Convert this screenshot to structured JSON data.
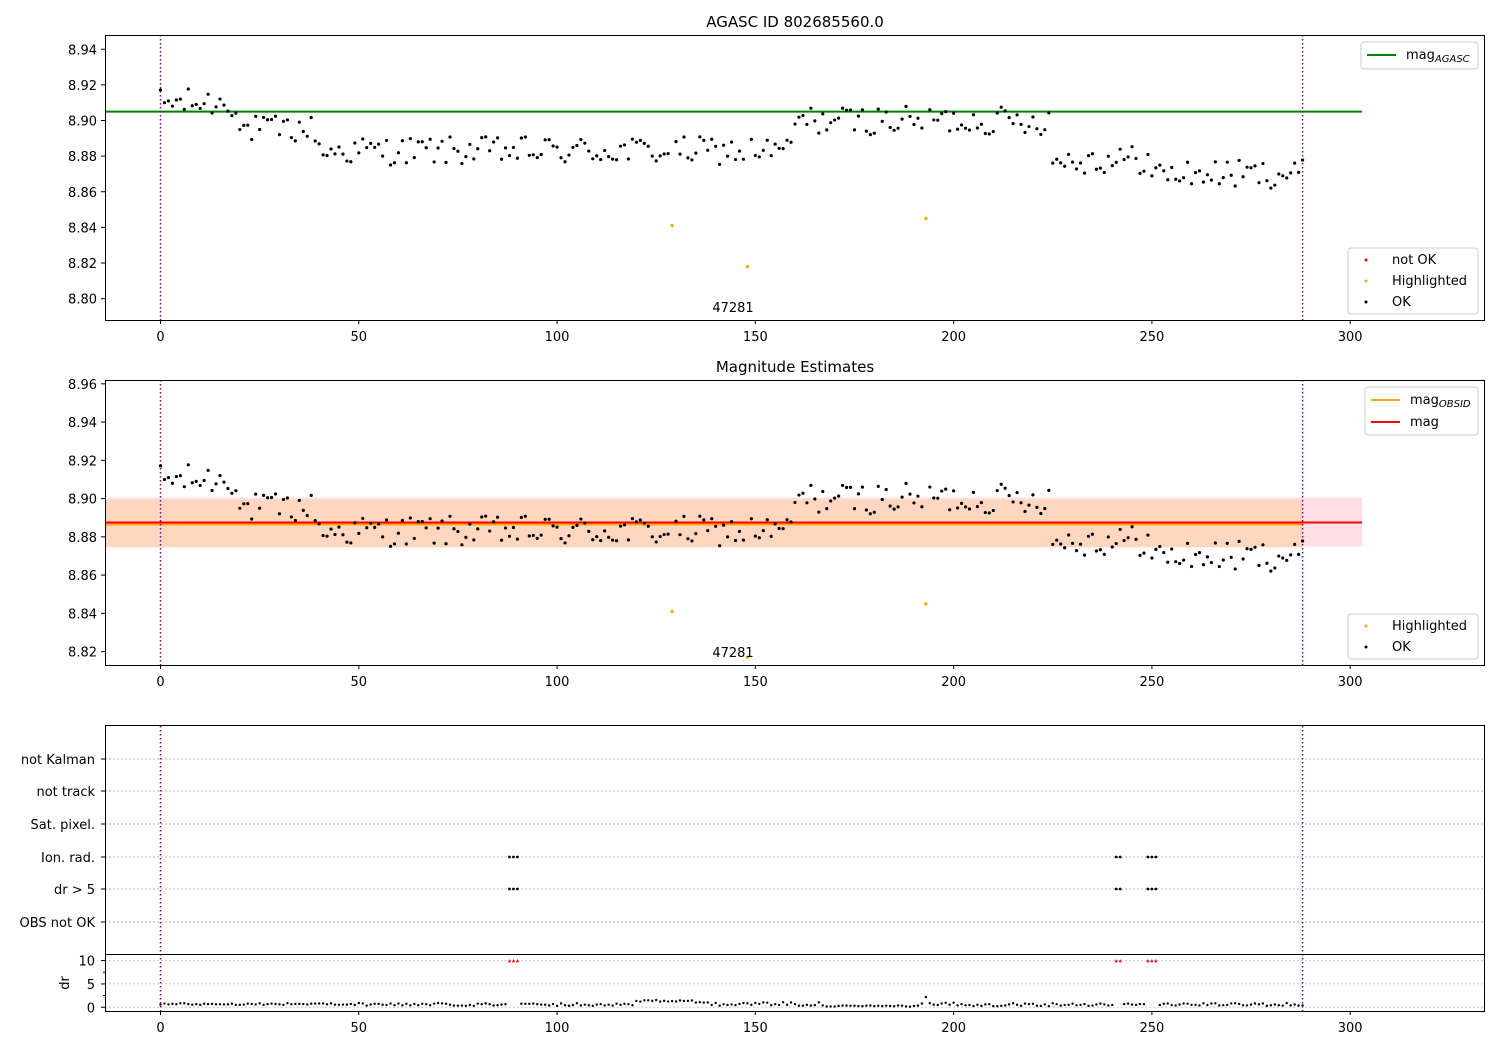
{
  "chart_data": [
    {
      "type": "scatter",
      "title": "AGASC ID 802685560.0",
      "annotation": "47281",
      "xlim": [
        -14,
        334
      ],
      "ylim": [
        8.788,
        8.948
      ],
      "xticks": [
        0,
        50,
        100,
        150,
        200,
        250,
        300
      ],
      "yticks": [
        8.8,
        8.82,
        8.84,
        8.86,
        8.88,
        8.9,
        8.92,
        8.94
      ],
      "ytick_labels": [
        "8.80",
        "8.82",
        "8.84",
        "8.86",
        "8.88",
        "8.90",
        "8.92",
        "8.94"
      ],
      "vlines": [
        0,
        288
      ],
      "lines": [
        {
          "name": "mag",
          "sub": "AGASC",
          "y": 8.905,
          "x_range": [
            -14,
            303
          ],
          "color": "#008000"
        }
      ],
      "legend_top": [
        {
          "name": "mag",
          "sub": "AGASC",
          "kind": "line",
          "color": "#008000"
        }
      ],
      "legend_bottom": [
        {
          "name": "not OK",
          "kind": "marker",
          "color": "#ff0000"
        },
        {
          "name": "Highlighted",
          "kind": "marker",
          "color": "#ffa500"
        },
        {
          "name": "OK",
          "kind": "marker",
          "color": "#000000"
        }
      ],
      "highlighted": [
        {
          "x": 129,
          "y": 8.841
        },
        {
          "x": 148,
          "y": 8.818
        },
        {
          "x": 193,
          "y": 8.845
        }
      ]
    },
    {
      "type": "scatter",
      "title": "Magnitude Estimates",
      "annotation": "47281",
      "xlim": [
        -14,
        334
      ],
      "ylim": [
        8.813,
        8.962
      ],
      "xticks": [
        0,
        50,
        100,
        150,
        200,
        250,
        300
      ],
      "yticks": [
        8.82,
        8.84,
        8.86,
        8.88,
        8.9,
        8.92,
        8.94,
        8.96
      ],
      "ytick_labels": [
        "8.82",
        "8.84",
        "8.86",
        "8.88",
        "8.90",
        "8.92",
        "8.94",
        "8.96"
      ],
      "vlines": [
        0,
        288
      ],
      "band_outer": [
        8.875,
        8.9005
      ],
      "band_inner": [
        8.8745,
        8.8995
      ],
      "band_color_outer": "#ffdde4",
      "band_color_inner": "#ffd6c0",
      "lines": [
        {
          "name": "mag",
          "sub": "OBSID",
          "y": 8.8865,
          "x_range": [
            -14,
            288
          ],
          "color": "#ffa500"
        },
        {
          "name": "mag",
          "y": 8.8875,
          "x_range": [
            -14,
            303
          ],
          "color": "#ff0000"
        }
      ],
      "legend_top": [
        {
          "name": "mag",
          "sub": "OBSID",
          "kind": "line",
          "color": "#ffa500"
        },
        {
          "name": "mag",
          "kind": "line",
          "color": "#ff0000"
        }
      ],
      "legend_bottom": [
        {
          "name": "Highlighted",
          "kind": "marker",
          "color": "#ffa500"
        },
        {
          "name": "OK",
          "kind": "marker",
          "color": "#000000"
        }
      ],
      "highlighted": [
        {
          "x": 129,
          "y": 8.841
        },
        {
          "x": 148,
          "y": 8.817
        },
        {
          "x": 193,
          "y": 8.845
        }
      ]
    },
    {
      "type": "scatter",
      "title": "",
      "xlim": [
        -14,
        334
      ],
      "xticks": [
        0,
        50,
        100,
        150,
        200,
        250,
        300
      ],
      "vlines": [
        0,
        288
      ],
      "flag_rows": [
        "not Kalman",
        "not track",
        "Sat. pixel.",
        "Ion. rad.",
        "dr > 5",
        "OBS not OK"
      ],
      "flags": {
        "Ion. rad.": [
          88,
          89,
          90,
          241,
          242,
          249,
          250,
          251
        ],
        "dr > 5": [
          88,
          89,
          90,
          241,
          242,
          249,
          250,
          251
        ]
      },
      "dr_label": "dr",
      "dr_ylim": [
        -0.8,
        11.2
      ],
      "dr_yticks": [
        0,
        5,
        10
      ],
      "dr_threshold": 10,
      "dr_clipped": [
        88,
        89,
        90,
        241,
        242,
        249,
        250,
        251
      ]
    }
  ]
}
